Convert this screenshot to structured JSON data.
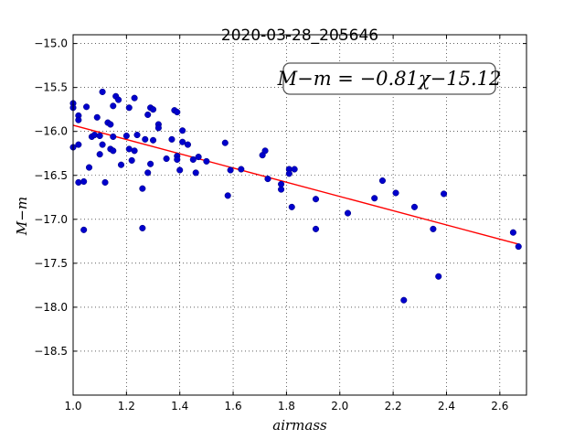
{
  "chart_data": {
    "type": "scatter",
    "title": "2020-03-28_205646",
    "xlabel": "airmass",
    "ylabel": "M−m",
    "xlim": [
      1.0,
      2.7
    ],
    "ylim": [
      -19.0,
      -14.9
    ],
    "y_inverted": true,
    "grid": true,
    "xticks": [
      1.0,
      1.2,
      1.4,
      1.6,
      1.8,
      2.0,
      2.2,
      2.4,
      2.6
    ],
    "xtick_labels": [
      "1.0",
      "1.2",
      "1.4",
      "1.6",
      "1.8",
      "2.0",
      "2.2",
      "2.4",
      "2.6"
    ],
    "yticks": [
      -15.0,
      -15.5,
      -16.0,
      -16.5,
      -17.0,
      -17.5,
      -18.0,
      -18.5
    ],
    "ytick_labels": [
      "−15.0",
      "−15.5",
      "−16.0",
      "−16.5",
      "−17.0",
      "−17.5",
      "−18.0",
      "−18.5"
    ],
    "annotation": "M−m = −0.81χ−15.12",
    "fit": {
      "slope": -0.81,
      "intercept": -15.12,
      "color": "#ff0000"
    },
    "point_color": "#0000cc",
    "points": [
      [
        1.0,
        -15.68
      ],
      [
        1.0,
        -15.73
      ],
      [
        1.0,
        -16.18
      ],
      [
        1.02,
        -15.82
      ],
      [
        1.02,
        -15.87
      ],
      [
        1.02,
        -16.15
      ],
      [
        1.02,
        -16.58
      ],
      [
        1.04,
        -16.57
      ],
      [
        1.04,
        -17.12
      ],
      [
        1.05,
        -15.72
      ],
      [
        1.06,
        -16.41
      ],
      [
        1.07,
        -16.06
      ],
      [
        1.08,
        -16.04
      ],
      [
        1.09,
        -15.84
      ],
      [
        1.1,
        -16.05
      ],
      [
        1.1,
        -16.26
      ],
      [
        1.11,
        -15.55
      ],
      [
        1.11,
        -16.15
      ],
      [
        1.12,
        -16.58
      ],
      [
        1.13,
        -15.9
      ],
      [
        1.14,
        -16.2
      ],
      [
        1.14,
        -15.92
      ],
      [
        1.15,
        -16.06
      ],
      [
        1.15,
        -16.22
      ],
      [
        1.15,
        -15.71
      ],
      [
        1.16,
        -15.6
      ],
      [
        1.17,
        -15.64
      ],
      [
        1.18,
        -16.38
      ],
      [
        1.2,
        -16.05
      ],
      [
        1.21,
        -15.73
      ],
      [
        1.21,
        -16.2
      ],
      [
        1.22,
        -16.33
      ],
      [
        1.23,
        -15.62
      ],
      [
        1.23,
        -16.22
      ],
      [
        1.24,
        -16.04
      ],
      [
        1.26,
        -16.65
      ],
      [
        1.26,
        -17.1
      ],
      [
        1.27,
        -16.09
      ],
      [
        1.28,
        -15.81
      ],
      [
        1.28,
        -16.47
      ],
      [
        1.29,
        -15.73
      ],
      [
        1.29,
        -16.37
      ],
      [
        1.3,
        -16.1
      ],
      [
        1.3,
        -15.75
      ],
      [
        1.32,
        -15.92
      ],
      [
        1.32,
        -15.96
      ],
      [
        1.35,
        -16.31
      ],
      [
        1.37,
        -16.09
      ],
      [
        1.38,
        -15.76
      ],
      [
        1.39,
        -15.78
      ],
      [
        1.39,
        -16.28
      ],
      [
        1.39,
        -16.32
      ],
      [
        1.4,
        -16.44
      ],
      [
        1.41,
        -16.12
      ],
      [
        1.41,
        -15.99
      ],
      [
        1.43,
        -16.15
      ],
      [
        1.45,
        -16.32
      ],
      [
        1.46,
        -16.47
      ],
      [
        1.47,
        -16.29
      ],
      [
        1.5,
        -16.34
      ],
      [
        1.57,
        -16.13
      ],
      [
        1.58,
        -16.73
      ],
      [
        1.59,
        -16.44
      ],
      [
        1.63,
        -16.43
      ],
      [
        1.71,
        -16.27
      ],
      [
        1.72,
        -16.22
      ],
      [
        1.73,
        -16.54
      ],
      [
        1.78,
        -16.66
      ],
      [
        1.78,
        -16.6
      ],
      [
        1.81,
        -16.43
      ],
      [
        1.81,
        -16.48
      ],
      [
        1.82,
        -16.86
      ],
      [
        1.83,
        -16.43
      ],
      [
        1.91,
        -17.11
      ],
      [
        1.91,
        -16.77
      ],
      [
        2.03,
        -16.93
      ],
      [
        2.13,
        -16.76
      ],
      [
        2.16,
        -16.56
      ],
      [
        2.21,
        -16.7
      ],
      [
        2.24,
        -17.92
      ],
      [
        2.28,
        -16.86
      ],
      [
        2.35,
        -17.11
      ],
      [
        2.37,
        -17.65
      ],
      [
        2.39,
        -16.71
      ],
      [
        2.65,
        -17.15
      ],
      [
        2.67,
        -17.31
      ]
    ]
  }
}
